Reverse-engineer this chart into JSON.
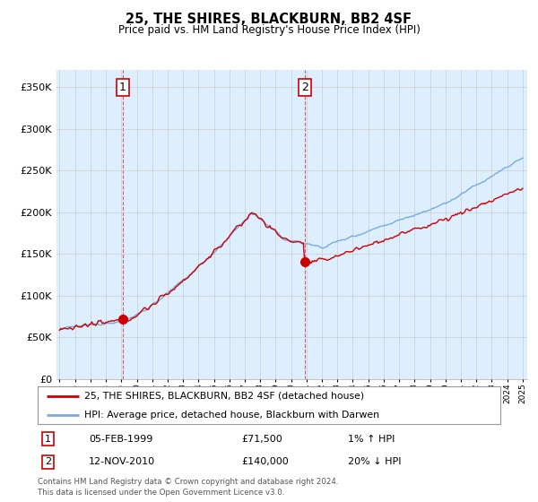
{
  "title": "25, THE SHIRES, BLACKBURN, BB2 4SF",
  "subtitle": "Price paid vs. HM Land Registry's House Price Index (HPI)",
  "ylabel_ticks": [
    "£0",
    "£50K",
    "£100K",
    "£150K",
    "£200K",
    "£250K",
    "£300K",
    "£350K"
  ],
  "ylabel_values": [
    0,
    50000,
    100000,
    150000,
    200000,
    250000,
    300000,
    350000
  ],
  "ylim": [
    0,
    370000
  ],
  "xlim_start": 1994.8,
  "xlim_end": 2025.3,
  "hpi_color": "#7aaadd",
  "price_color": "#cc0000",
  "bg_plot_color": "#ddeeff",
  "marker1_date": 1999.09,
  "marker1_price": 71500,
  "marker2_date": 2010.87,
  "marker2_price": 140000,
  "legend_line1": "25, THE SHIRES, BLACKBURN, BB2 4SF (detached house)",
  "legend_line2": "HPI: Average price, detached house, Blackburn with Darwen",
  "marker1_date_str": "05-FEB-1999",
  "marker1_price_str": "£71,500",
  "marker1_hpi_str": "1% ↑ HPI",
  "marker2_date_str": "12-NOV-2010",
  "marker2_price_str": "£140,000",
  "marker2_hpi_str": "20% ↓ HPI",
  "footer": "Contains HM Land Registry data © Crown copyright and database right 2024.\nThis data is licensed under the Open Government Licence v3.0.",
  "background_color": "#ffffff",
  "grid_color": "#cccccc"
}
